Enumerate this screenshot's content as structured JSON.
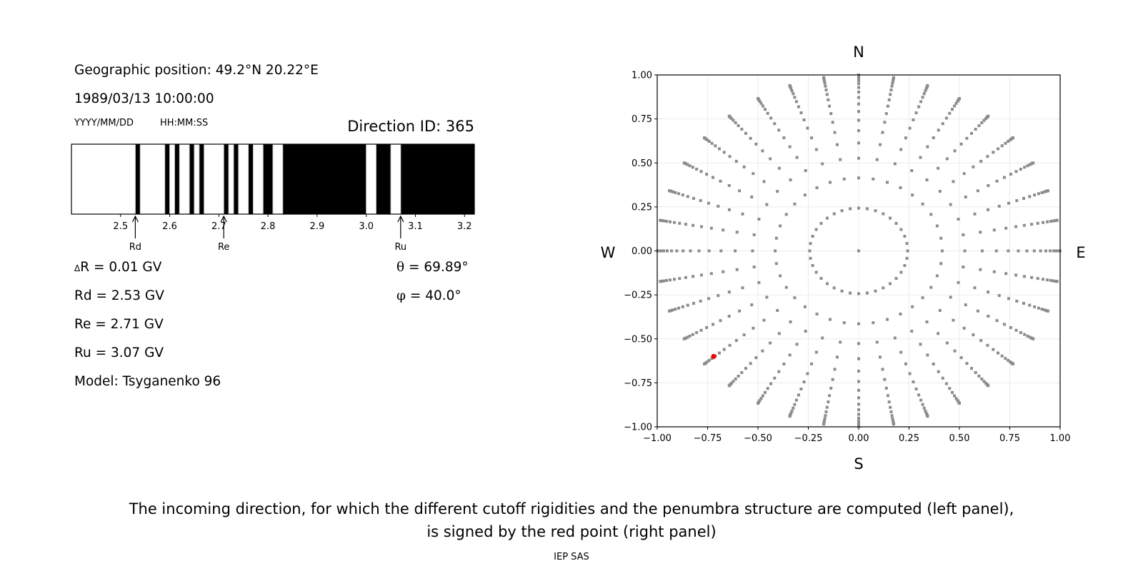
{
  "info": {
    "position": "Geographic position: 49.2°N 20.22°E",
    "datetime": "1989/03/13 10:00:00",
    "date_format": "YYYY/MM/DD",
    "time_format": "HH:MM:SS",
    "direction_id": "Direction ID: 365",
    "delta_r_symbol": "Δ",
    "delta_r": "R = 0.01 GV",
    "rd": "Rd = 2.53 GV",
    "re": "Re = 2.71 GV",
    "ru": "Ru = 3.07 GV",
    "model": "Model: Tsyganenko 96",
    "theta_symbol": "θ",
    "theta": " = 69.89°",
    "phi_symbol": "φ",
    "phi": " = 40.0°"
  },
  "caption": {
    "line1": "The incoming direction, for which the different cutoff rigidities and the penumbra structure are computed (left panel),",
    "line2": "is signed by the red point (right panel)",
    "credit": "IEP SAS"
  },
  "chart_data": [
    {
      "type": "penumbra-bar",
      "xlim": [
        2.4,
        3.22
      ],
      "xticks": [
        2.5,
        2.6,
        2.7,
        2.8,
        2.9,
        3.0,
        3.1,
        3.2
      ],
      "xtick_labels": [
        "2.5",
        "2.6",
        "2.7",
        "2.8",
        "2.9",
        "3.0",
        "3.1",
        "3.2"
      ],
      "forbidden_bands": [
        [
          2.53,
          2.54
        ],
        [
          2.59,
          2.6
        ],
        [
          2.61,
          2.62
        ],
        [
          2.64,
          2.65
        ],
        [
          2.66,
          2.67
        ],
        [
          2.71,
          2.72
        ],
        [
          2.73,
          2.74
        ],
        [
          2.76,
          2.77
        ],
        [
          2.79,
          2.81
        ],
        [
          2.83,
          3.0
        ],
        [
          3.02,
          3.05
        ],
        [
          3.07,
          3.22
        ]
      ],
      "colors": {
        "forbidden": "#000000",
        "allowed": "#ffffff",
        "edge": "#cccccc"
      },
      "markers": [
        {
          "label": "Rd",
          "value": 2.53
        },
        {
          "label": "Re",
          "value": 2.71
        },
        {
          "label": "Ru",
          "value": 3.07
        }
      ]
    },
    {
      "type": "scatter",
      "xlim": [
        -1,
        1
      ],
      "ylim": [
        -1,
        1
      ],
      "xticks": [
        "−1.00",
        "−0.75",
        "−0.50",
        "−0.25",
        "0.00",
        "0.25",
        "0.50",
        "0.75",
        "1.00"
      ],
      "yticks": [
        "−1.00",
        "−0.75",
        "−0.50",
        "−0.25",
        "0.00",
        "0.25",
        "0.50",
        "0.75",
        "1.00"
      ],
      "tick_values": [
        -1,
        -0.75,
        -0.5,
        -0.25,
        0,
        0.25,
        0.5,
        0.75,
        1
      ],
      "grid": true,
      "compass": {
        "N": "N",
        "S": "S",
        "W": "W",
        "E": "E"
      },
      "grid_points": {
        "azimuth_step_deg": 10,
        "cos_zenith": [
          0.97,
          0.91,
          0.85,
          0.79,
          0.73,
          0.67,
          0.61,
          0.55,
          0.49,
          0.43,
          0.37,
          0.31,
          0.25,
          0.19,
          0.13,
          0.07,
          0.01
        ],
        "center_point": [
          0,
          0
        ],
        "color": "#8c8c8c"
      },
      "selected_point": {
        "theta_deg": 69.89,
        "phi_deg": 40.0,
        "x": -0.72,
        "y": -0.6,
        "color": "#ee0000"
      }
    }
  ]
}
